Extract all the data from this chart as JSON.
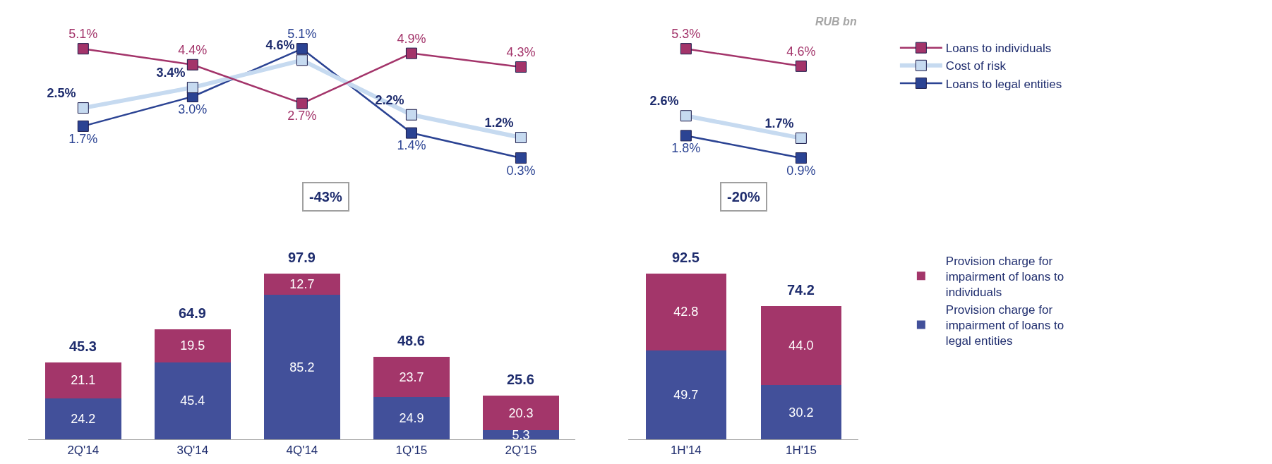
{
  "chart_data": [
    {
      "type": "line",
      "categories": [
        null,
        null,
        null,
        null,
        null
      ],
      "tick_labels": false,
      "marker": "square",
      "legend": "right",
      "series": [
        {
          "name": "Loans to individuals",
          "color": "#a3346a",
          "values": [
            5.1,
            4.4,
            2.7,
            4.9,
            4.3
          ],
          "value_labels": [
            "5.1%",
            "4.4%",
            "2.7%",
            "4.9%",
            "4.3%"
          ]
        },
        {
          "name": "Cost of risk",
          "color": "#c6daf0",
          "values": [
            2.5,
            3.4,
            4.6,
            2.2,
            1.2
          ],
          "value_labels": [
            "2.5%",
            "3.4%",
            "4.6%",
            "2.2%",
            "1.2%"
          ]
        },
        {
          "name": "Loans to legal entities",
          "color": "#2b4393",
          "values": [
            1.7,
            3.0,
            5.1,
            1.4,
            0.3
          ],
          "value_labels": [
            "1.7%",
            "3.0%",
            "5.1%",
            "1.4%",
            "0.3%"
          ]
        }
      ]
    },
    {
      "type": "line",
      "categories": [
        null,
        null
      ],
      "tick_labels": false,
      "marker": "square",
      "annotations": [
        "RUB bn"
      ],
      "series": [
        {
          "color": "#a3346a",
          "values": [
            5.3,
            4.6
          ],
          "value_labels": [
            "5.3%",
            "4.6%"
          ]
        },
        {
          "color": "#c6daf0",
          "values": [
            2.6,
            1.7
          ],
          "value_labels": [
            "2.6%",
            "1.7%"
          ]
        },
        {
          "color": "#2b4393",
          "values": [
            1.8,
            0.9
          ],
          "value_labels": [
            "1.8%",
            "0.9%"
          ]
        }
      ]
    },
    {
      "type": "bar",
      "stacked": true,
      "categories": [
        "2Q'14",
        "3Q'14",
        "4Q'14",
        "1Q'15",
        "2Q'15"
      ],
      "tick_labels": "x",
      "legend": "right",
      "annotations": [
        "-43%"
      ],
      "totals": [
        "45.3",
        "64.9",
        "97.9",
        "48.6",
        "25.6"
      ],
      "series": [
        {
          "name": "Provision charge for impairment of loans to legal entities",
          "color": "#42509a",
          "values": [
            24.2,
            45.4,
            85.2,
            24.9,
            5.3
          ],
          "value_labels": [
            "24.2",
            "45.4",
            "85.2",
            "24.9",
            "5.3"
          ]
        },
        {
          "name": "Provision charge for impairment of loans to individuals",
          "color": "#a3366a",
          "values": [
            21.1,
            19.5,
            12.7,
            23.7,
            20.3
          ],
          "value_labels": [
            "21.1",
            "19.5",
            "12.7",
            "23.7",
            "20.3"
          ]
        }
      ]
    },
    {
      "type": "bar",
      "stacked": true,
      "categories": [
        "1H'14",
        "1H'15"
      ],
      "tick_labels": "x",
      "annotations": [
        "-20%"
      ],
      "totals": [
        "92.5",
        "74.2"
      ],
      "series": [
        {
          "color": "#42509a",
          "values": [
            49.7,
            30.2
          ],
          "value_labels": [
            "49.7",
            "30.2"
          ]
        },
        {
          "color": "#a3366a",
          "values": [
            42.8,
            44.0
          ],
          "value_labels": [
            "42.8",
            "44.0"
          ]
        }
      ]
    }
  ]
}
